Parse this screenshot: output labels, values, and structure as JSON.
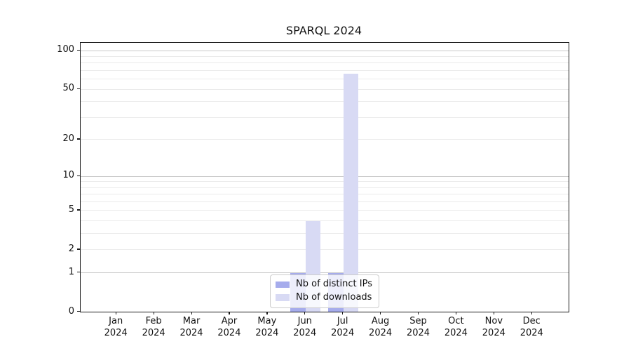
{
  "chart_data": {
    "type": "bar",
    "title": "SPARQL 2024",
    "categories": [
      {
        "month": "Jan",
        "year": "2024"
      },
      {
        "month": "Feb",
        "year": "2024"
      },
      {
        "month": "Mar",
        "year": "2024"
      },
      {
        "month": "Apr",
        "year": "2024"
      },
      {
        "month": "May",
        "year": "2024"
      },
      {
        "month": "Jun",
        "year": "2024"
      },
      {
        "month": "Jul",
        "year": "2024"
      },
      {
        "month": "Aug",
        "year": "2024"
      },
      {
        "month": "Sep",
        "year": "2024"
      },
      {
        "month": "Oct",
        "year": "2024"
      },
      {
        "month": "Nov",
        "year": "2024"
      },
      {
        "month": "Dec",
        "year": "2024"
      }
    ],
    "series": [
      {
        "name": "Nb of distinct IPs",
        "color": "#a6acec",
        "values": [
          0,
          0,
          0,
          0,
          0,
          1,
          1,
          0,
          0,
          0,
          0,
          0
        ]
      },
      {
        "name": "Nb of downloads",
        "color": "#d8daf4",
        "values": [
          0,
          0,
          0,
          0,
          0,
          4,
          66,
          0,
          0,
          0,
          0,
          0
        ]
      }
    ],
    "ylabel": "",
    "xlabel": "",
    "yscale": "log10(1+value)",
    "ylim": [
      0,
      114
    ],
    "ytick_values": [
      0,
      1,
      2,
      5,
      10,
      20,
      50,
      100
    ],
    "ytick_labels": [
      "0",
      "1",
      "2",
      "5",
      "10",
      "20",
      "50",
      "100"
    ],
    "grid": {
      "major_values": [
        1,
        10,
        100
      ],
      "minor_values": [
        2,
        3,
        4,
        5,
        6,
        7,
        8,
        9,
        20,
        30,
        40,
        50,
        60,
        70,
        80,
        90
      ],
      "major_color": "#c9c9c9",
      "minor_color": "#ebebeb"
    },
    "legend": {
      "position": "lower center",
      "items": [
        "Nb of distinct IPs",
        "Nb of downloads"
      ]
    },
    "bar_group_width": 0.8
  }
}
